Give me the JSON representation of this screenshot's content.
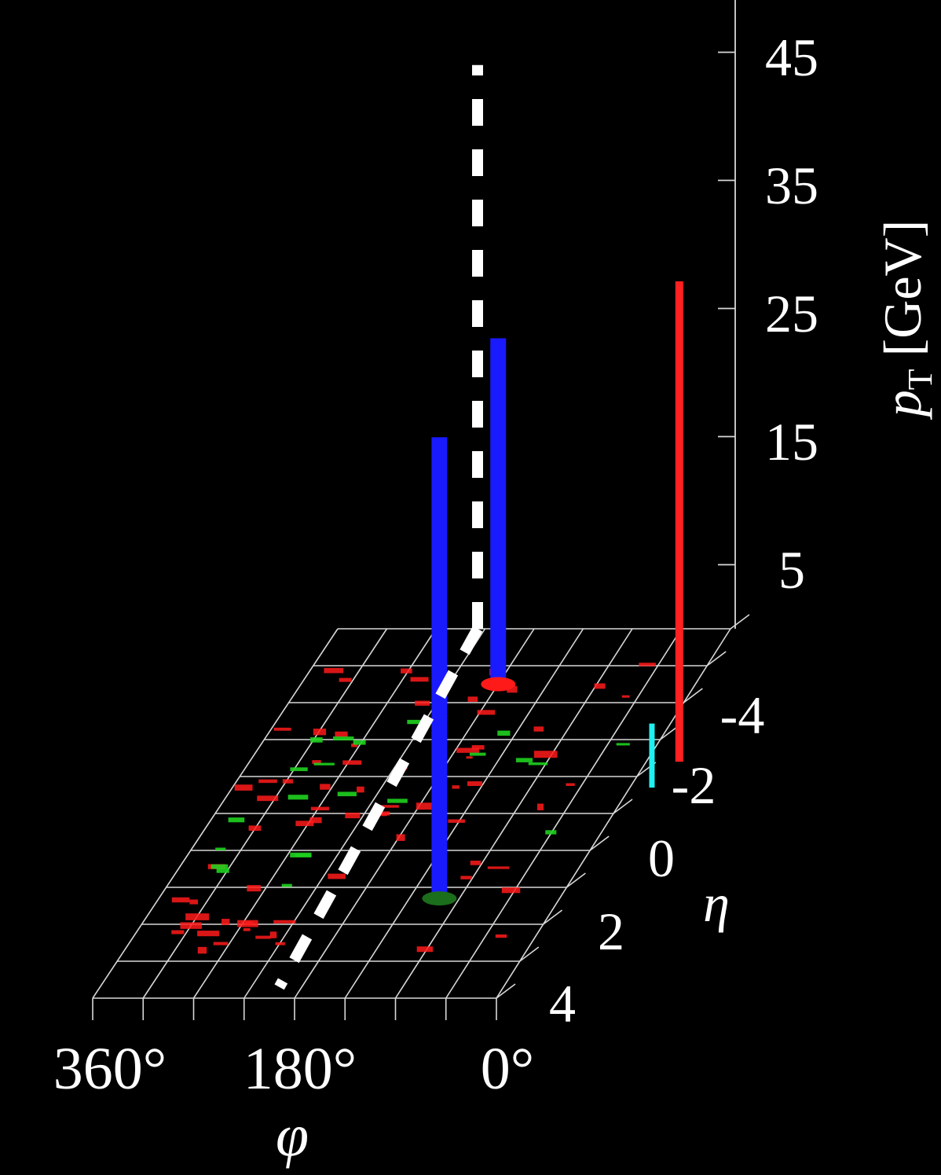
{
  "chart_data": {
    "type": "lego-plot",
    "axes": {
      "phi": {
        "label": "φ",
        "ticks": [
          "360°",
          "180°",
          "0°"
        ],
        "range_deg": [
          360,
          0
        ]
      },
      "eta": {
        "label": "η",
        "ticks": [
          "-4",
          "-2",
          "0",
          "2",
          "4"
        ],
        "range": [
          -5,
          5
        ]
      },
      "pt": {
        "label": "p",
        "label_sub": "T",
        "unit": "[GeV]",
        "ticks": [
          "5",
          "15",
          "25",
          "35",
          "45"
        ],
        "range": [
          0,
          50
        ]
      }
    },
    "grid": true,
    "towers": [
      {
        "kind": "muon",
        "color": "#1a1aff",
        "phi_deg": 180,
        "eta": -3.5,
        "pt": 27
      },
      {
        "kind": "muon",
        "color": "#1a1aff",
        "phi_deg": 108,
        "eta": 2.3,
        "pt": 36
      },
      {
        "kind": "missing-et",
        "color": "#ffffff",
        "style": "dashed",
        "phi_deg": 0,
        "eta": -5,
        "pt": 44
      },
      {
        "kind": "electron",
        "color": "#ff2020",
        "phi_deg": -30,
        "eta": -1.4,
        "pt": 37.5
      },
      {
        "kind": "track",
        "color": "#20f0f0",
        "phi_deg": -20,
        "eta": -0.7,
        "pt": 5
      }
    ],
    "deposits_color_ecal": "#ff1a1a",
    "deposits_color_hcal": "#1fd11f"
  }
}
